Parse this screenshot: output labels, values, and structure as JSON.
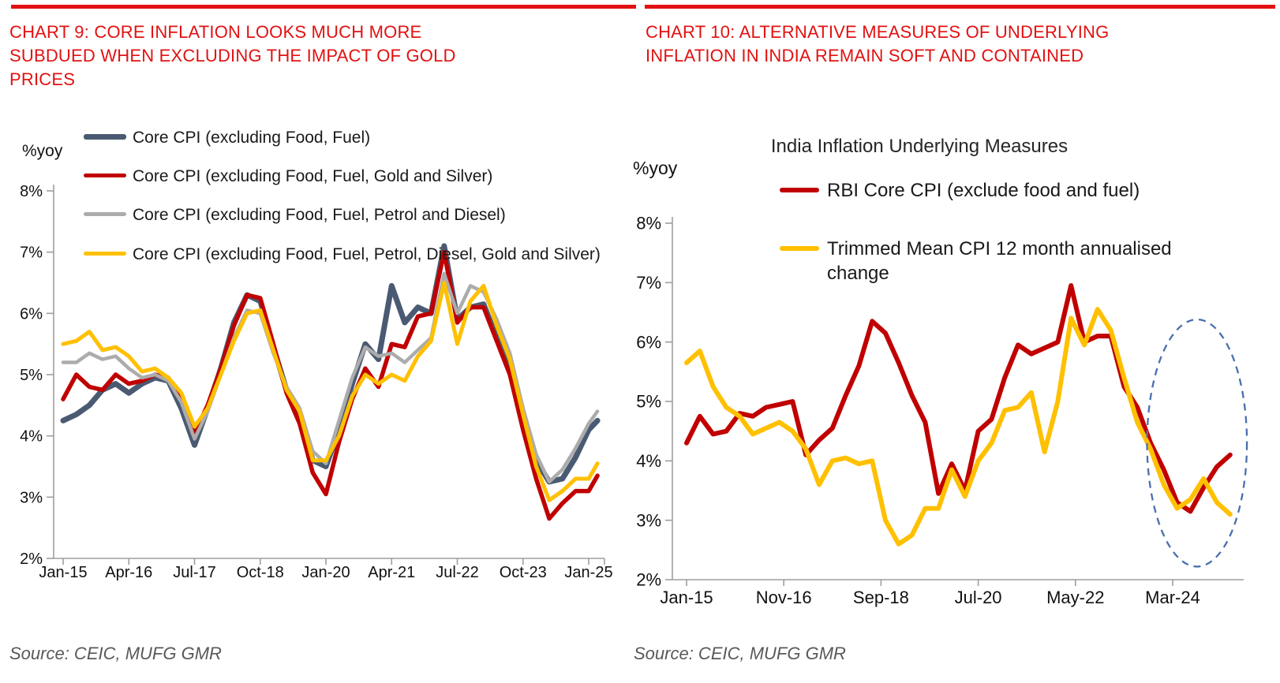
{
  "page": {
    "source_left": "Source: CEIC, MUFG GMR",
    "source_right": "Source: CEIC, MUFG GMR"
  },
  "panels": [
    {
      "title": "CHART 9: CORE INFLATION LOOKS MUCH MORE SUBDUED WHEN EXCLUDING THE IMPACT OF GOLD PRICES",
      "y_unit": "%yoy"
    },
    {
      "title": "CHART 10: ALTERNATIVE MEASURES OF UNDERLYING INFLATION IN INDIA REMAIN SOFT AND CONTAINED",
      "y_unit": "%yoy",
      "inner_title": "India Inflation Underlying Measures"
    }
  ],
  "colors": {
    "title_red": "#e21111",
    "axis_gray": "#9e9e9e",
    "source_gray": "#595959",
    "navy": "#4a5a72",
    "dark_red": "#c00000",
    "gray": "#acacac",
    "yellow": "#ffc000",
    "ellipse_blue": "#4a6fae"
  },
  "chart_data": [
    {
      "type": "line",
      "title": "",
      "ylabel": "%yoy",
      "ylim": [
        2,
        8
      ],
      "grid": false,
      "legend_position": "top-left-overlay",
      "y_tick_labels": [
        "8%",
        "7%",
        "6%",
        "5%",
        "4%",
        "3%",
        "2%"
      ],
      "y_tick_values": [
        8,
        7,
        6,
        5,
        4,
        3,
        2
      ],
      "x_tick_labels": [
        "Jan-15",
        "Apr-16",
        "Jul-17",
        "Oct-18",
        "Jan-20",
        "Apr-21",
        "Jul-22",
        "Oct-23",
        "Jan-25"
      ],
      "x_tick_months": [
        0,
        15,
        30,
        45,
        60,
        75,
        90,
        105,
        120
      ],
      "months_from_jan15": [
        0,
        3,
        6,
        9,
        12,
        15,
        18,
        21,
        24,
        27,
        30,
        33,
        36,
        39,
        42,
        45,
        48,
        51,
        54,
        57,
        60,
        63,
        66,
        69,
        72,
        75,
        78,
        81,
        84,
        87,
        90,
        93,
        96,
        99,
        102,
        105,
        108,
        111,
        114,
        117,
        120,
        122
      ],
      "series": [
        {
          "name": "Core CPI (excluding Food, Fuel)",
          "color": "#4a5a72",
          "values": [
            4.25,
            4.35,
            4.5,
            4.75,
            4.85,
            4.7,
            4.85,
            4.95,
            4.9,
            4.45,
            3.85,
            4.45,
            5.1,
            5.85,
            6.3,
            6.2,
            5.45,
            4.75,
            4.25,
            3.6,
            3.5,
            4.1,
            4.85,
            5.5,
            5.25,
            6.45,
            5.85,
            6.1,
            6.0,
            7.1,
            5.9,
            6.1,
            6.15,
            5.6,
            5.1,
            4.3,
            3.6,
            3.25,
            3.3,
            3.65,
            4.1,
            4.25
          ]
        },
        {
          "name": "Core CPI (excluding Food, Fuel, Gold and Silver)",
          "color": "#c00000",
          "values": [
            4.6,
            5.0,
            4.8,
            4.75,
            5.0,
            4.85,
            4.9,
            5.0,
            4.95,
            4.6,
            4.05,
            4.5,
            5.1,
            5.8,
            6.3,
            6.25,
            5.5,
            4.7,
            4.2,
            3.4,
            3.05,
            3.9,
            4.6,
            5.1,
            4.8,
            5.5,
            5.45,
            5.95,
            6.0,
            7.0,
            5.85,
            6.1,
            6.1,
            5.55,
            5.0,
            4.1,
            3.3,
            2.65,
            2.9,
            3.1,
            3.1,
            3.35
          ]
        },
        {
          "name": "Core CPI (excluding Food, Fuel, Petrol and Diesel)",
          "color": "#acacac",
          "values": [
            5.2,
            5.2,
            5.35,
            5.25,
            5.3,
            5.1,
            4.95,
            5.0,
            4.9,
            4.55,
            3.95,
            4.4,
            5.0,
            5.6,
            6.05,
            6.0,
            5.35,
            4.8,
            4.45,
            3.75,
            3.55,
            4.25,
            4.95,
            5.45,
            5.3,
            5.35,
            5.2,
            5.4,
            5.6,
            6.65,
            6.0,
            6.45,
            6.35,
            5.9,
            5.35,
            4.45,
            3.7,
            3.25,
            3.45,
            3.8,
            4.2,
            4.4
          ]
        },
        {
          "name": "Core CPI (excluding Food, Fuel, Petrol, Diesel, Gold and Silver)",
          "color": "#ffc000",
          "values": [
            5.5,
            5.55,
            5.7,
            5.4,
            5.45,
            5.3,
            5.05,
            5.1,
            4.95,
            4.7,
            4.15,
            4.45,
            5.0,
            5.55,
            6.0,
            6.05,
            5.4,
            4.75,
            4.4,
            3.6,
            3.6,
            4.0,
            4.65,
            5.0,
            4.85,
            5.0,
            4.9,
            5.3,
            5.55,
            6.5,
            5.5,
            6.2,
            6.45,
            5.8,
            5.25,
            4.35,
            3.5,
            2.95,
            3.1,
            3.3,
            3.3,
            3.55
          ]
        }
      ]
    },
    {
      "type": "line",
      "title": "India Inflation Underlying Measures",
      "ylabel": "%yoy",
      "ylim": [
        2,
        8
      ],
      "grid": false,
      "legend_position": "top-overlay",
      "y_tick_labels": [
        "8%",
        "7%",
        "6%",
        "5%",
        "4%",
        "3%",
        "2%"
      ],
      "y_tick_values": [
        8,
        7,
        6,
        5,
        4,
        3,
        2
      ],
      "x_tick_labels": [
        "Jan-15",
        "Nov-16",
        "Sep-18",
        "Jul-20",
        "May-22",
        "Mar-24"
      ],
      "x_tick_months": [
        0,
        22,
        44,
        66,
        88,
        110
      ],
      "months_from_jan15": [
        0,
        3,
        6,
        9,
        12,
        15,
        18,
        21,
        24,
        27,
        30,
        33,
        36,
        39,
        42,
        45,
        48,
        51,
        54,
        57,
        60,
        63,
        66,
        69,
        72,
        75,
        78,
        81,
        84,
        87,
        90,
        93,
        96,
        99,
        102,
        105,
        108,
        111,
        114,
        117,
        120,
        123
      ],
      "series": [
        {
          "name": "RBI Core CPI (exclude food and fuel)",
          "color": "#c00000",
          "values": [
            4.3,
            4.75,
            4.45,
            4.5,
            4.8,
            4.75,
            4.9,
            4.95,
            5.0,
            4.1,
            4.35,
            4.55,
            5.1,
            5.6,
            6.35,
            6.15,
            5.65,
            5.1,
            4.65,
            3.45,
            3.95,
            3.5,
            4.5,
            4.7,
            5.4,
            5.95,
            5.8,
            5.9,
            6.0,
            6.95,
            6.0,
            6.1,
            6.1,
            5.25,
            4.9,
            4.3,
            3.85,
            3.3,
            3.15,
            3.55,
            3.9,
            4.1
          ]
        },
        {
          "name": "Trimmed Mean CPI 12 month annualised change",
          "color": "#ffc000",
          "values": [
            5.65,
            5.85,
            5.25,
            4.9,
            4.75,
            4.45,
            4.55,
            4.65,
            4.5,
            4.2,
            3.6,
            4.0,
            4.05,
            3.95,
            4.0,
            3.0,
            2.6,
            2.75,
            3.2,
            3.2,
            3.85,
            3.4,
            4.0,
            4.3,
            4.85,
            4.9,
            5.15,
            4.15,
            5.0,
            6.4,
            5.95,
            6.55,
            6.2,
            5.4,
            4.65,
            4.2,
            3.6,
            3.2,
            3.35,
            3.7,
            3.3,
            3.1
          ]
        }
      ],
      "annotation": {
        "shape": "dashed-ellipse",
        "color": "#4a6fae",
        "center_month": 115.5,
        "center_value": 4.3,
        "radius_months": 11.3,
        "radius_value": 2.08,
        "meaning": "highlights soft recent inflation readings"
      }
    }
  ]
}
